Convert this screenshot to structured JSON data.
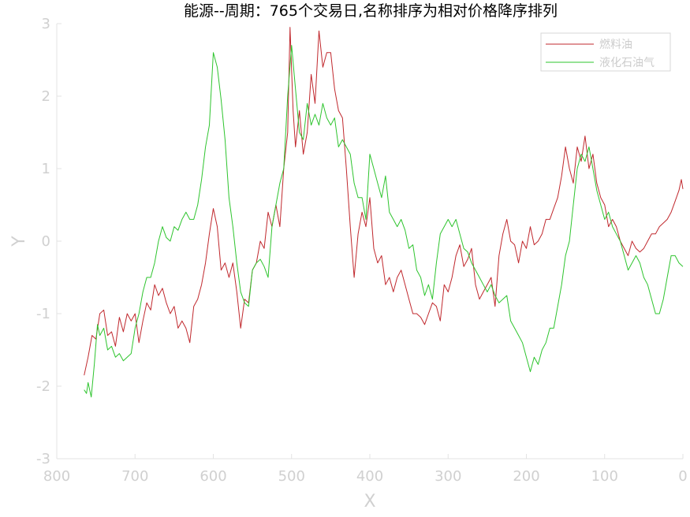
{
  "chart_data": {
    "type": "line",
    "title": "能源--周期：765个交易日,名称排序为相对价格降序排列",
    "xlabel": "X",
    "ylabel": "Y",
    "xlim": [
      800,
      0
    ],
    "ylim": [
      -3,
      3
    ],
    "x_reversed": true,
    "xticks": [
      800,
      700,
      600,
      500,
      400,
      300,
      200,
      100,
      0
    ],
    "yticks": [
      3,
      2,
      1,
      0,
      -1,
      -2,
      -3
    ],
    "grid": false,
    "legend_position": "top-right",
    "series": [
      {
        "name": "燃料油",
        "color": "#c0282d",
        "points": [
          [
            765,
            -1.85
          ],
          [
            760,
            -1.6
          ],
          [
            755,
            -1.3
          ],
          [
            750,
            -1.35
          ],
          [
            745,
            -1.0
          ],
          [
            740,
            -0.95
          ],
          [
            735,
            -1.3
          ],
          [
            730,
            -1.25
          ],
          [
            725,
            -1.45
          ],
          [
            720,
            -1.05
          ],
          [
            715,
            -1.25
          ],
          [
            710,
            -1.0
          ],
          [
            705,
            -1.1
          ],
          [
            700,
            -1.0
          ],
          [
            695,
            -1.4
          ],
          [
            690,
            -1.1
          ],
          [
            685,
            -0.85
          ],
          [
            680,
            -0.95
          ],
          [
            675,
            -0.6
          ],
          [
            670,
            -0.75
          ],
          [
            665,
            -0.65
          ],
          [
            660,
            -0.85
          ],
          [
            655,
            -1.0
          ],
          [
            650,
            -0.9
          ],
          [
            645,
            -1.2
          ],
          [
            640,
            -1.1
          ],
          [
            635,
            -1.2
          ],
          [
            630,
            -1.4
          ],
          [
            625,
            -0.9
          ],
          [
            620,
            -0.8
          ],
          [
            615,
            -0.6
          ],
          [
            610,
            -0.3
          ],
          [
            605,
            0.1
          ],
          [
            600,
            0.45
          ],
          [
            595,
            0.2
          ],
          [
            590,
            -0.4
          ],
          [
            585,
            -0.3
          ],
          [
            580,
            -0.5
          ],
          [
            575,
            -0.3
          ],
          [
            570,
            -0.7
          ],
          [
            565,
            -1.2
          ],
          [
            560,
            -0.8
          ],
          [
            555,
            -0.85
          ],
          [
            550,
            -0.4
          ],
          [
            545,
            -0.3
          ],
          [
            540,
            0.0
          ],
          [
            535,
            -0.1
          ],
          [
            530,
            0.4
          ],
          [
            525,
            0.2
          ],
          [
            520,
            0.5
          ],
          [
            515,
            0.2
          ],
          [
            510,
            1.0
          ],
          [
            505,
            1.5
          ],
          [
            502,
            2.95
          ],
          [
            498,
            1.8
          ],
          [
            495,
            1.3
          ],
          [
            490,
            1.8
          ],
          [
            485,
            1.2
          ],
          [
            480,
            1.5
          ],
          [
            475,
            2.3
          ],
          [
            470,
            1.9
          ],
          [
            465,
            2.9
          ],
          [
            460,
            2.4
          ],
          [
            455,
            2.6
          ],
          [
            450,
            2.6
          ],
          [
            445,
            2.1
          ],
          [
            440,
            1.8
          ],
          [
            435,
            1.7
          ],
          [
            430,
            1.0
          ],
          [
            425,
            0.2
          ],
          [
            420,
            -0.5
          ],
          [
            415,
            0.1
          ],
          [
            410,
            0.4
          ],
          [
            405,
            0.2
          ],
          [
            400,
            0.6
          ],
          [
            395,
            -0.1
          ],
          [
            390,
            -0.3
          ],
          [
            385,
            -0.2
          ],
          [
            380,
            -0.6
          ],
          [
            375,
            -0.5
          ],
          [
            370,
            -0.7
          ],
          [
            365,
            -0.5
          ],
          [
            360,
            -0.4
          ],
          [
            355,
            -0.6
          ],
          [
            350,
            -0.8
          ],
          [
            345,
            -1.0
          ],
          [
            340,
            -1.0
          ],
          [
            335,
            -1.05
          ],
          [
            330,
            -1.15
          ],
          [
            325,
            -1.0
          ],
          [
            320,
            -0.85
          ],
          [
            315,
            -0.9
          ],
          [
            310,
            -1.1
          ],
          [
            305,
            -0.6
          ],
          [
            300,
            -0.7
          ],
          [
            295,
            -0.5
          ],
          [
            290,
            -0.2
          ],
          [
            285,
            -0.05
          ],
          [
            280,
            -0.35
          ],
          [
            275,
            -0.25
          ],
          [
            270,
            -0.1
          ],
          [
            265,
            -0.6
          ],
          [
            260,
            -0.8
          ],
          [
            255,
            -0.7
          ],
          [
            250,
            -0.6
          ],
          [
            245,
            -0.5
          ],
          [
            240,
            -0.9
          ],
          [
            235,
            -0.2
          ],
          [
            230,
            0.1
          ],
          [
            225,
            0.3
          ],
          [
            220,
            0.0
          ],
          [
            215,
            -0.05
          ],
          [
            210,
            -0.3
          ],
          [
            205,
            0.0
          ],
          [
            200,
            -0.1
          ],
          [
            195,
            0.2
          ],
          [
            190,
            -0.05
          ],
          [
            185,
            0.0
          ],
          [
            180,
            0.1
          ],
          [
            175,
            0.3
          ],
          [
            170,
            0.3
          ],
          [
            165,
            0.45
          ],
          [
            160,
            0.6
          ],
          [
            155,
            0.9
          ],
          [
            150,
            1.3
          ],
          [
            145,
            1.0
          ],
          [
            140,
            0.8
          ],
          [
            135,
            1.3
          ],
          [
            130,
            1.1
          ],
          [
            125,
            1.45
          ],
          [
            120,
            1.0
          ],
          [
            115,
            1.2
          ],
          [
            110,
            0.8
          ],
          [
            105,
            0.6
          ],
          [
            100,
            0.5
          ],
          [
            95,
            0.2
          ],
          [
            90,
            0.3
          ],
          [
            85,
            0.2
          ],
          [
            80,
            0.0
          ],
          [
            75,
            -0.1
          ],
          [
            70,
            -0.2
          ],
          [
            65,
            0.0
          ],
          [
            60,
            -0.1
          ],
          [
            55,
            -0.15
          ],
          [
            50,
            -0.1
          ],
          [
            45,
            0.0
          ],
          [
            40,
            0.1
          ],
          [
            35,
            0.1
          ],
          [
            30,
            0.2
          ],
          [
            25,
            0.25
          ],
          [
            20,
            0.3
          ],
          [
            15,
            0.4
          ],
          [
            10,
            0.55
          ],
          [
            5,
            0.7
          ],
          [
            2,
            0.85
          ],
          [
            0,
            0.72
          ]
        ]
      },
      {
        "name": "液化石油气",
        "color": "#2ec42e",
        "points": [
          [
            765,
            -2.05
          ],
          [
            762,
            -2.1
          ],
          [
            760,
            -1.95
          ],
          [
            756,
            -2.15
          ],
          [
            752,
            -1.7
          ],
          [
            748,
            -1.15
          ],
          [
            745,
            -1.3
          ],
          [
            740,
            -1.2
          ],
          [
            735,
            -1.5
          ],
          [
            730,
            -1.45
          ],
          [
            725,
            -1.6
          ],
          [
            720,
            -1.55
          ],
          [
            715,
            -1.65
          ],
          [
            710,
            -1.6
          ],
          [
            705,
            -1.55
          ],
          [
            700,
            -1.2
          ],
          [
            695,
            -1.0
          ],
          [
            690,
            -0.7
          ],
          [
            685,
            -0.5
          ],
          [
            680,
            -0.5
          ],
          [
            675,
            -0.3
          ],
          [
            670,
            0.0
          ],
          [
            665,
            0.2
          ],
          [
            660,
            0.05
          ],
          [
            655,
            0.0
          ],
          [
            650,
            0.2
          ],
          [
            645,
            0.15
          ],
          [
            640,
            0.3
          ],
          [
            635,
            0.4
          ],
          [
            630,
            0.3
          ],
          [
            625,
            0.3
          ],
          [
            620,
            0.5
          ],
          [
            615,
            0.85
          ],
          [
            610,
            1.3
          ],
          [
            605,
            1.6
          ],
          [
            600,
            2.6
          ],
          [
            595,
            2.4
          ],
          [
            590,
            1.95
          ],
          [
            585,
            1.4
          ],
          [
            580,
            0.6
          ],
          [
            575,
            0.2
          ],
          [
            570,
            -0.3
          ],
          [
            565,
            -0.7
          ],
          [
            560,
            -0.85
          ],
          [
            555,
            -0.9
          ],
          [
            550,
            -0.4
          ],
          [
            545,
            -0.3
          ],
          [
            540,
            -0.25
          ],
          [
            535,
            -0.35
          ],
          [
            530,
            -0.5
          ],
          [
            525,
            0.2
          ],
          [
            520,
            0.5
          ],
          [
            515,
            0.8
          ],
          [
            510,
            1.0
          ],
          [
            505,
            2.0
          ],
          [
            500,
            2.7
          ],
          [
            495,
            2.1
          ],
          [
            490,
            1.5
          ],
          [
            485,
            1.4
          ],
          [
            480,
            1.9
          ],
          [
            475,
            1.6
          ],
          [
            470,
            1.75
          ],
          [
            465,
            1.6
          ],
          [
            460,
            1.9
          ],
          [
            455,
            1.7
          ],
          [
            450,
            1.6
          ],
          [
            445,
            1.7
          ],
          [
            440,
            1.3
          ],
          [
            435,
            1.4
          ],
          [
            430,
            1.3
          ],
          [
            425,
            1.2
          ],
          [
            420,
            0.8
          ],
          [
            415,
            0.6
          ],
          [
            410,
            0.6
          ],
          [
            405,
            0.3
          ],
          [
            400,
            1.2
          ],
          [
            395,
            1.0
          ],
          [
            390,
            0.8
          ],
          [
            385,
            0.6
          ],
          [
            380,
            0.9
          ],
          [
            375,
            0.4
          ],
          [
            370,
            0.3
          ],
          [
            365,
            0.2
          ],
          [
            360,
            0.3
          ],
          [
            355,
            0.15
          ],
          [
            350,
            -0.1
          ],
          [
            345,
            -0.05
          ],
          [
            340,
            -0.4
          ],
          [
            335,
            -0.5
          ],
          [
            330,
            -0.75
          ],
          [
            325,
            -0.6
          ],
          [
            320,
            -0.8
          ],
          [
            315,
            -0.3
          ],
          [
            310,
            0.1
          ],
          [
            305,
            0.2
          ],
          [
            300,
            0.3
          ],
          [
            295,
            0.2
          ],
          [
            290,
            0.3
          ],
          [
            285,
            0.1
          ],
          [
            280,
            -0.1
          ],
          [
            275,
            -0.15
          ],
          [
            270,
            -0.3
          ],
          [
            265,
            -0.4
          ],
          [
            260,
            -0.5
          ],
          [
            255,
            -0.6
          ],
          [
            250,
            -0.7
          ],
          [
            245,
            -0.6
          ],
          [
            240,
            -0.75
          ],
          [
            235,
            -0.85
          ],
          [
            230,
            -0.8
          ],
          [
            225,
            -0.75
          ],
          [
            220,
            -1.1
          ],
          [
            215,
            -1.2
          ],
          [
            210,
            -1.3
          ],
          [
            205,
            -1.4
          ],
          [
            200,
            -1.6
          ],
          [
            195,
            -1.8
          ],
          [
            190,
            -1.6
          ],
          [
            185,
            -1.7
          ],
          [
            180,
            -1.5
          ],
          [
            175,
            -1.4
          ],
          [
            170,
            -1.2
          ],
          [
            165,
            -1.2
          ],
          [
            160,
            -0.9
          ],
          [
            155,
            -0.6
          ],
          [
            150,
            -0.2
          ],
          [
            145,
            0.0
          ],
          [
            140,
            0.5
          ],
          [
            135,
            1.0
          ],
          [
            130,
            1.2
          ],
          [
            125,
            1.1
          ],
          [
            120,
            1.3
          ],
          [
            115,
            1.0
          ],
          [
            110,
            0.7
          ],
          [
            105,
            0.5
          ],
          [
            100,
            0.3
          ],
          [
            95,
            0.4
          ],
          [
            90,
            0.2
          ],
          [
            85,
            0.1
          ],
          [
            80,
            0.0
          ],
          [
            75,
            -0.2
          ],
          [
            70,
            -0.4
          ],
          [
            65,
            -0.3
          ],
          [
            60,
            -0.2
          ],
          [
            55,
            -0.3
          ],
          [
            50,
            -0.5
          ],
          [
            45,
            -0.6
          ],
          [
            40,
            -0.8
          ],
          [
            35,
            -1.0
          ],
          [
            30,
            -1.0
          ],
          [
            25,
            -0.8
          ],
          [
            20,
            -0.5
          ],
          [
            15,
            -0.2
          ],
          [
            10,
            -0.2
          ],
          [
            5,
            -0.3
          ],
          [
            0,
            -0.35
          ]
        ]
      }
    ]
  }
}
